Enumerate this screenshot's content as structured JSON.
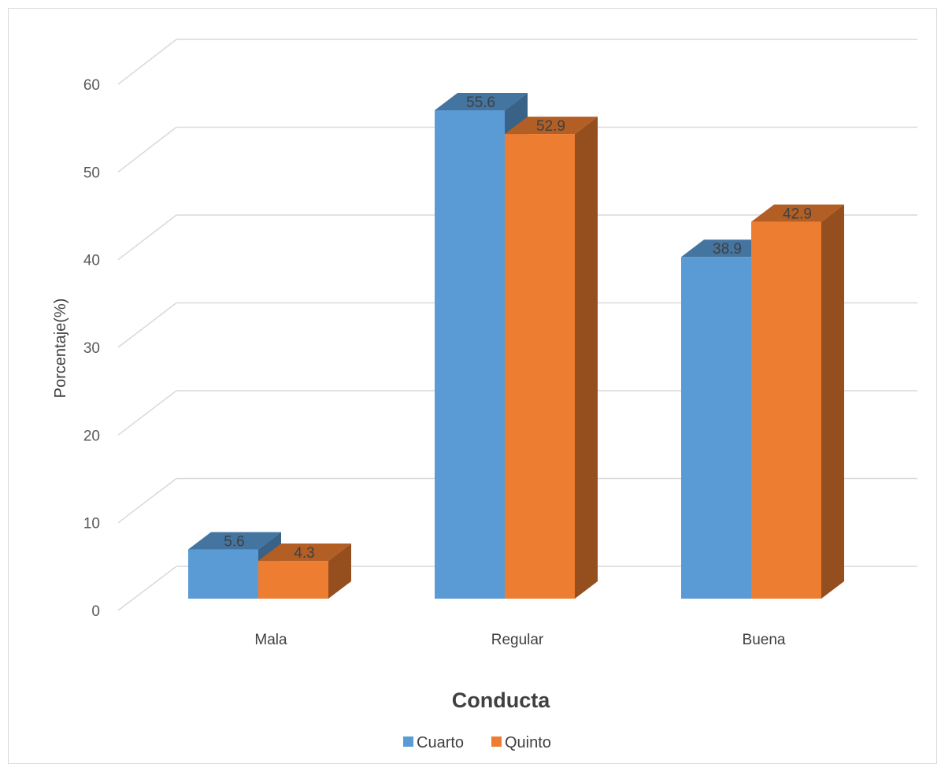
{
  "chart_data": {
    "type": "bar",
    "style": "3d-clustered-column",
    "categories": [
      "Mala",
      "Regular",
      "Buena"
    ],
    "series": [
      {
        "name": "Cuarto",
        "values": [
          5.6,
          55.6,
          38.9
        ],
        "labels": [
          "5.6",
          "55.6",
          "38.9"
        ],
        "color": "#5b9bd5"
      },
      {
        "name": "Quinto",
        "values": [
          4.3,
          52.9,
          42.9
        ],
        "labels": [
          "4.3",
          "52.9",
          "42.9"
        ],
        "color": "#ed7d31"
      }
    ],
    "yticks": [
      "0",
      "10",
      "20",
      "30",
      "40",
      "50",
      "60"
    ],
    "ylim": [
      0,
      60
    ],
    "ylabel": "Porcentaje(%)",
    "xlabel": "Conducta",
    "grid": true,
    "legend": "bottom"
  }
}
